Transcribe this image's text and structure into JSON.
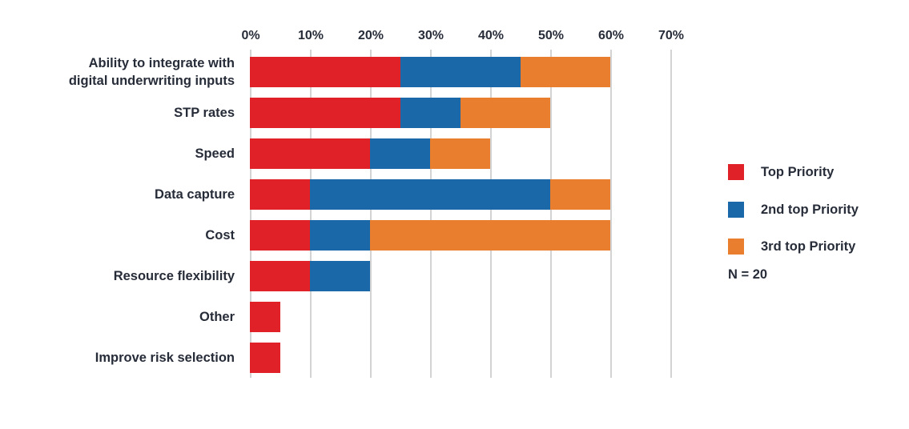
{
  "chart_data": {
    "type": "bar",
    "orientation": "horizontal",
    "stacked": true,
    "title": "",
    "xlabel": "",
    "ylabel": "",
    "grid": true,
    "categories": [
      {
        "label": "Ability to integrate with digital underwriting inputs",
        "lines": [
          "Ability to integrate with",
          "digital underwriting inputs"
        ]
      },
      {
        "label": "STP rates",
        "lines": [
          "STP rates"
        ]
      },
      {
        "label": "Speed",
        "lines": [
          "Speed"
        ]
      },
      {
        "label": "Data capture",
        "lines": [
          "Data capture"
        ]
      },
      {
        "label": "Cost",
        "lines": [
          "Cost"
        ]
      },
      {
        "label": "Resource flexibility",
        "lines": [
          "Resource flexibility"
        ]
      },
      {
        "label": "Other",
        "lines": [
          "Other"
        ]
      },
      {
        "label": "Improve risk selection",
        "lines": [
          "Improve risk selection"
        ]
      }
    ],
    "series": [
      {
        "name": "Top Priority",
        "color": "#e02128",
        "values": [
          25,
          25,
          20,
          10,
          10,
          10,
          5,
          5
        ]
      },
      {
        "name": "2nd top Priority",
        "color": "#1b68a8",
        "values": [
          20,
          10,
          10,
          40,
          10,
          10,
          0,
          0
        ]
      },
      {
        "name": "3rd top Priority",
        "color": "#e87e2e",
        "values": [
          15,
          15,
          10,
          10,
          40,
          0,
          0,
          0
        ]
      }
    ],
    "x_axis": {
      "min": 0,
      "max": 70,
      "tick_step": 10,
      "unit": "%",
      "tick_labels": [
        "0%",
        "10%",
        "20%",
        "30%",
        "40%",
        "50%",
        "60%",
        "70%"
      ]
    },
    "legend": {
      "position": "right",
      "entries": [
        "Top Priority",
        "2nd top Priority",
        "3rd top Priority"
      ]
    },
    "sample_size_label": "N = 20",
    "theme": {
      "background": "#ffffff",
      "text_color": "#272c39",
      "gridline_color": "#d3d3d3"
    }
  }
}
